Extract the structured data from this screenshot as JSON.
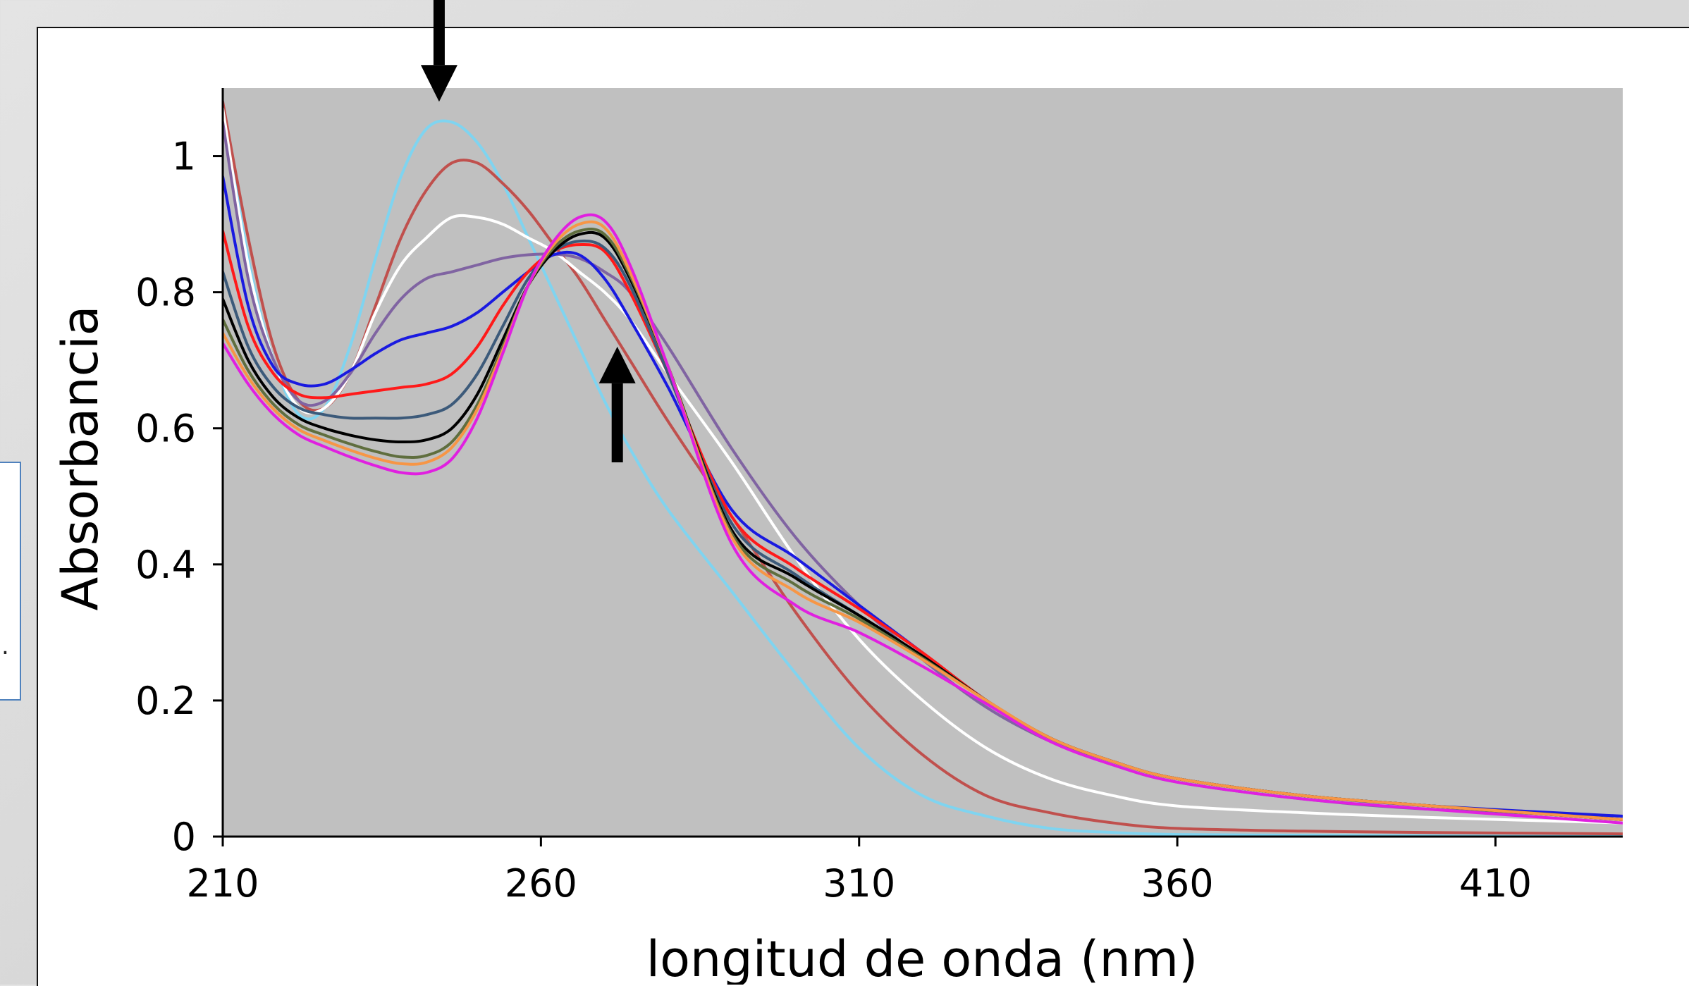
{
  "chart_data": {
    "type": "line",
    "title": "",
    "xlabel": "longitud de onda (nm)",
    "ylabel": "Absorbancia",
    "xlim": [
      210,
      430
    ],
    "ylim": [
      0,
      1.1
    ],
    "xticks": [
      210,
      260,
      310,
      360,
      410
    ],
    "yticks": [
      0,
      0.2,
      0.4,
      0.6,
      0.8,
      1
    ],
    "ytick_labels": [
      "0",
      "0.2",
      "0.4",
      "0.6",
      "0.8",
      "1"
    ],
    "plot_background": "#c0c0c0",
    "grid": false,
    "legend": "none",
    "annotations": [
      {
        "type": "arrow",
        "direction": "down",
        "x": 244,
        "y_from": 1.24,
        "y_to": 1.08
      },
      {
        "type": "arrow",
        "direction": "up",
        "x": 272,
        "y_from": 0.55,
        "y_to": 0.72
      }
    ],
    "series": [
      {
        "color": "#7fd4f0",
        "x": [
          210,
          214,
          218,
          222,
          226,
          230,
          234,
          238,
          242,
          246,
          250,
          254,
          258,
          262,
          266,
          270,
          274,
          280,
          290,
          300,
          310,
          320,
          330,
          340,
          350,
          360,
          380,
          400,
          430
        ],
        "y": [
          1.08,
          0.85,
          0.7,
          0.62,
          0.63,
          0.72,
          0.85,
          0.97,
          1.04,
          1.05,
          1.02,
          0.96,
          0.88,
          0.8,
          0.72,
          0.64,
          0.57,
          0.48,
          0.36,
          0.24,
          0.13,
          0.06,
          0.03,
          0.012,
          0.006,
          0.003,
          0.002,
          0.001,
          0.0
        ]
      },
      {
        "color": "#c0504d",
        "x": [
          210,
          214,
          218,
          222,
          226,
          230,
          234,
          238,
          242,
          246,
          250,
          254,
          258,
          262,
          266,
          270,
          274,
          280,
          290,
          300,
          310,
          320,
          330,
          340,
          350,
          360,
          380,
          400,
          430
        ],
        "y": [
          1.08,
          0.88,
          0.72,
          0.64,
          0.63,
          0.68,
          0.78,
          0.88,
          0.95,
          0.99,
          0.99,
          0.96,
          0.92,
          0.87,
          0.82,
          0.76,
          0.7,
          0.61,
          0.47,
          0.33,
          0.21,
          0.12,
          0.06,
          0.035,
          0.02,
          0.012,
          0.008,
          0.006,
          0.004
        ]
      },
      {
        "color": "#ffffff",
        "x": [
          210,
          214,
          218,
          222,
          226,
          230,
          234,
          238,
          242,
          246,
          250,
          254,
          258,
          262,
          266,
          270,
          274,
          280,
          290,
          300,
          310,
          320,
          330,
          340,
          350,
          360,
          380,
          400,
          430
        ],
        "y": [
          1.07,
          0.84,
          0.7,
          0.63,
          0.63,
          0.68,
          0.77,
          0.84,
          0.88,
          0.91,
          0.91,
          0.9,
          0.88,
          0.86,
          0.83,
          0.8,
          0.76,
          0.68,
          0.55,
          0.41,
          0.29,
          0.2,
          0.13,
          0.085,
          0.06,
          0.045,
          0.035,
          0.028,
          0.02
        ]
      },
      {
        "color": "#8064a2",
        "x": [
          210,
          214,
          218,
          222,
          226,
          230,
          234,
          238,
          242,
          246,
          250,
          254,
          258,
          262,
          266,
          270,
          274,
          280,
          290,
          300,
          310,
          320,
          330,
          340,
          350,
          360,
          380,
          400,
          430
        ],
        "y": [
          1.05,
          0.82,
          0.7,
          0.64,
          0.64,
          0.68,
          0.74,
          0.79,
          0.82,
          0.83,
          0.84,
          0.85,
          0.855,
          0.856,
          0.85,
          0.83,
          0.8,
          0.72,
          0.57,
          0.44,
          0.34,
          0.26,
          0.19,
          0.14,
          0.105,
          0.08,
          0.055,
          0.04,
          0.03
        ]
      },
      {
        "color": "#1a1ae0",
        "x": [
          210,
          214,
          218,
          222,
          226,
          230,
          234,
          238,
          242,
          246,
          250,
          254,
          258,
          262,
          266,
          270,
          274,
          280,
          290,
          300,
          310,
          320,
          330,
          340,
          350,
          360,
          380,
          400,
          430
        ],
        "y": [
          0.97,
          0.78,
          0.69,
          0.665,
          0.665,
          0.685,
          0.71,
          0.73,
          0.74,
          0.75,
          0.77,
          0.8,
          0.83,
          0.855,
          0.855,
          0.82,
          0.76,
          0.66,
          0.48,
          0.41,
          0.34,
          0.27,
          0.2,
          0.145,
          0.11,
          0.085,
          0.06,
          0.045,
          0.03
        ]
      },
      {
        "color": "#ff1a1a",
        "x": [
          210,
          214,
          218,
          222,
          226,
          230,
          234,
          238,
          242,
          246,
          250,
          254,
          258,
          262,
          266,
          270,
          274,
          280,
          290,
          300,
          310,
          320,
          330,
          340,
          350,
          360,
          380,
          400,
          430
        ],
        "y": [
          0.89,
          0.75,
          0.68,
          0.65,
          0.645,
          0.65,
          0.655,
          0.66,
          0.665,
          0.68,
          0.72,
          0.78,
          0.83,
          0.86,
          0.87,
          0.86,
          0.8,
          0.68,
          0.47,
          0.395,
          0.335,
          0.27,
          0.2,
          0.145,
          0.11,
          0.085,
          0.06,
          0.045,
          0.025
        ]
      },
      {
        "color": "#3c5a7a",
        "x": [
          210,
          214,
          218,
          222,
          226,
          230,
          234,
          238,
          242,
          246,
          250,
          254,
          258,
          262,
          266,
          270,
          274,
          280,
          290,
          300,
          310,
          320,
          330,
          340,
          350,
          360,
          380,
          400,
          430
        ],
        "y": [
          0.83,
          0.72,
          0.66,
          0.63,
          0.62,
          0.615,
          0.615,
          0.615,
          0.62,
          0.635,
          0.68,
          0.75,
          0.82,
          0.86,
          0.875,
          0.865,
          0.81,
          0.68,
          0.46,
          0.385,
          0.325,
          0.265,
          0.2,
          0.145,
          0.11,
          0.085,
          0.06,
          0.045,
          0.025
        ]
      },
      {
        "color": "#000000",
        "x": [
          210,
          214,
          218,
          222,
          226,
          230,
          234,
          238,
          242,
          246,
          250,
          254,
          258,
          262,
          266,
          270,
          274,
          280,
          290,
          300,
          310,
          320,
          330,
          340,
          350,
          360,
          380,
          400,
          430
        ],
        "y": [
          0.79,
          0.7,
          0.645,
          0.615,
          0.6,
          0.59,
          0.583,
          0.58,
          0.583,
          0.6,
          0.65,
          0.73,
          0.81,
          0.86,
          0.885,
          0.88,
          0.82,
          0.69,
          0.45,
          0.38,
          0.325,
          0.265,
          0.2,
          0.145,
          0.11,
          0.085,
          0.06,
          0.045,
          0.025
        ]
      },
      {
        "color": "#5f6e3e",
        "x": [
          210,
          214,
          218,
          222,
          226,
          230,
          234,
          238,
          242,
          246,
          250,
          254,
          258,
          262,
          266,
          270,
          274,
          280,
          290,
          300,
          310,
          320,
          330,
          340,
          350,
          360,
          380,
          400,
          430
        ],
        "y": [
          0.76,
          0.685,
          0.635,
          0.605,
          0.59,
          0.577,
          0.566,
          0.558,
          0.56,
          0.58,
          0.635,
          0.72,
          0.81,
          0.865,
          0.89,
          0.885,
          0.825,
          0.69,
          0.445,
          0.37,
          0.32,
          0.262,
          0.2,
          0.145,
          0.11,
          0.085,
          0.06,
          0.045,
          0.025
        ]
      },
      {
        "color": "#f79646",
        "x": [
          210,
          214,
          218,
          222,
          226,
          230,
          234,
          238,
          242,
          246,
          250,
          254,
          258,
          262,
          266,
          270,
          274,
          280,
          290,
          300,
          310,
          320,
          330,
          340,
          350,
          360,
          380,
          400,
          430
        ],
        "y": [
          0.74,
          0.675,
          0.628,
          0.598,
          0.582,
          0.568,
          0.556,
          0.548,
          0.55,
          0.572,
          0.628,
          0.715,
          0.81,
          0.87,
          0.9,
          0.895,
          0.83,
          0.69,
          0.44,
          0.36,
          0.315,
          0.26,
          0.2,
          0.145,
          0.11,
          0.085,
          0.06,
          0.045,
          0.025
        ]
      },
      {
        "color": "#e020e0",
        "x": [
          210,
          214,
          218,
          222,
          226,
          230,
          234,
          238,
          242,
          246,
          250,
          254,
          258,
          262,
          266,
          270,
          274,
          280,
          290,
          300,
          310,
          320,
          330,
          340,
          350,
          360,
          380,
          400,
          430
        ],
        "y": [
          0.725,
          0.665,
          0.62,
          0.59,
          0.573,
          0.558,
          0.545,
          0.535,
          0.535,
          0.555,
          0.615,
          0.71,
          0.81,
          0.875,
          0.91,
          0.905,
          0.84,
          0.69,
          0.43,
          0.34,
          0.3,
          0.25,
          0.195,
          0.14,
          0.105,
          0.08,
          0.055,
          0.04,
          0.02
        ]
      }
    ]
  }
}
